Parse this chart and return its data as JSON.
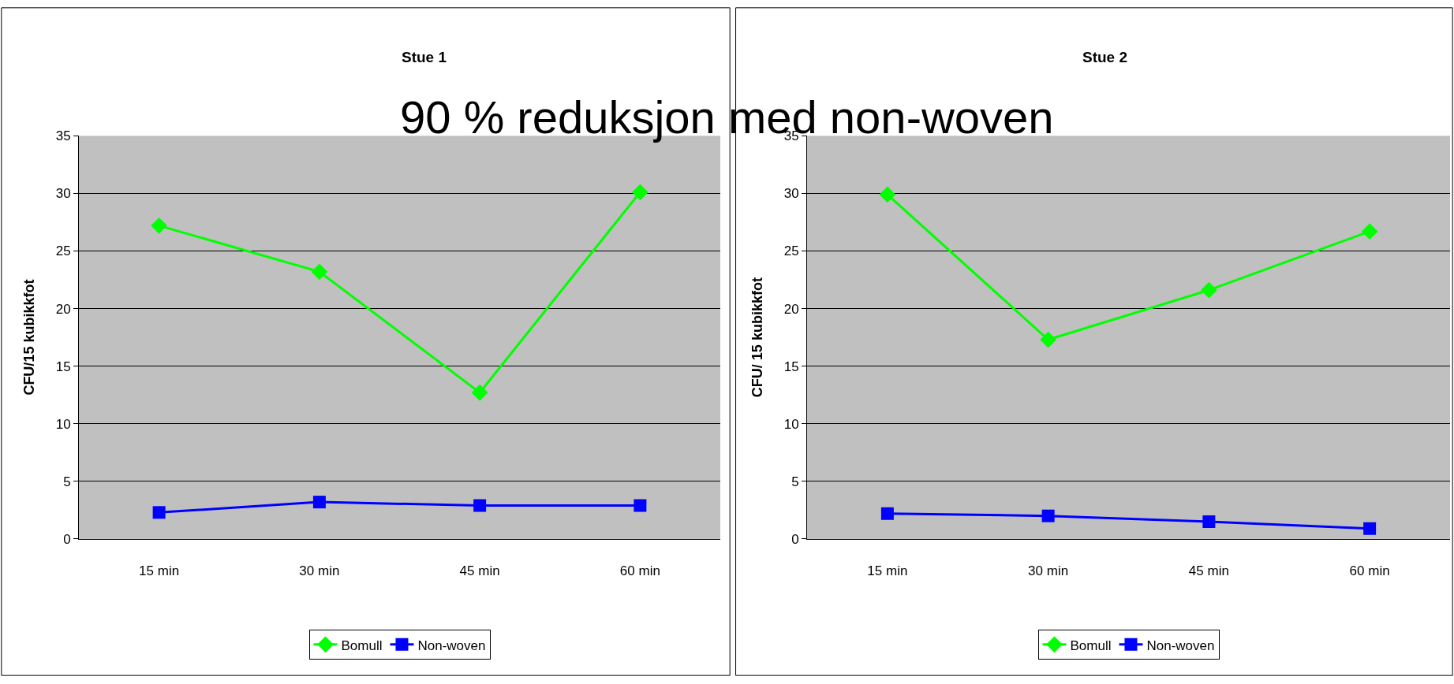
{
  "chart_data": [
    {
      "type": "line",
      "title": "Stue 1",
      "ylabel": "CFU/15 kubikkfot",
      "annotations": [
        "90 % reduksjon med non-woven"
      ],
      "categories": [
        "15 min",
        "30 min",
        "45 min",
        "60 min"
      ],
      "series": [
        {
          "name": "Bomull",
          "color": "#00ff00",
          "marker": "diamond",
          "values": [
            27.2,
            23.2,
            12.7,
            30.1
          ]
        },
        {
          "name": "Non-woven",
          "color": "#0000ff",
          "marker": "square",
          "values": [
            2.3,
            3.2,
            2.9,
            2.9
          ]
        }
      ],
      "ylim": [
        0,
        35
      ],
      "yticks": [
        0,
        5,
        10,
        15,
        20,
        25,
        30,
        35
      ],
      "grid": "y",
      "legend": "bottom",
      "line_style": "solid"
    },
    {
      "type": "line",
      "title": "Stue 2",
      "ylabel": "CFU/ 15 kubikkfot",
      "categories": [
        "15 min",
        "30 min",
        "45 min",
        "60 min"
      ],
      "series": [
        {
          "name": "Bomull",
          "color": "#00ff00",
          "marker": "diamond",
          "values": [
            29.9,
            17.3,
            21.6,
            26.7
          ]
        },
        {
          "name": "Non-woven",
          "color": "#0000ff",
          "marker": "square",
          "values": [
            2.2,
            2.0,
            1.5,
            0.9
          ]
        }
      ],
      "ylim": [
        0,
        35
      ],
      "yticks": [
        0,
        5,
        10,
        15,
        20,
        25,
        30,
        35
      ],
      "grid": "y",
      "legend": "bottom",
      "line_style": "solid"
    }
  ]
}
